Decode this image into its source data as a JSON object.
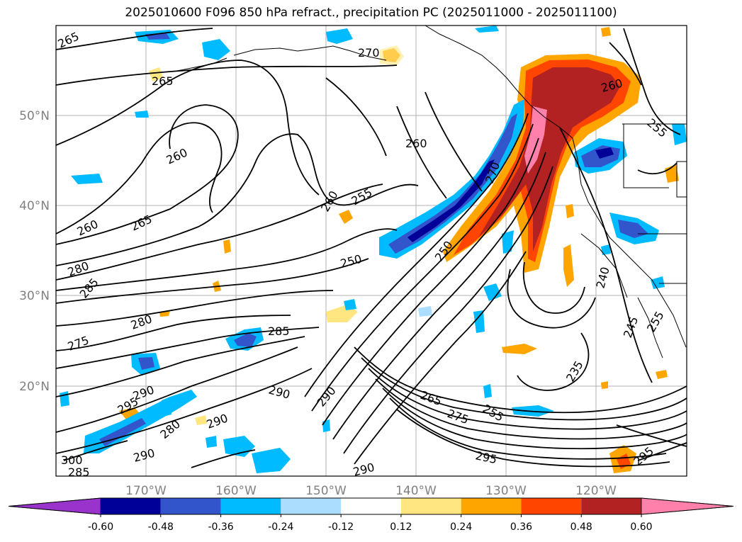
{
  "title": "2025010600 F096 850 hPa refract., precipitation PC (2025011000 - 2025011100)",
  "map": {
    "lon_range": [
      -180,
      -110
    ],
    "lat_range": [
      10,
      60
    ],
    "grid": true,
    "x_ticks": [
      "170°W",
      "160°W",
      "150°W",
      "140°W",
      "130°W",
      "120°W"
    ],
    "y_ticks": [
      "20°N",
      "30°N",
      "40°N",
      "50°N"
    ]
  },
  "contour_labels": [
    "265",
    "270",
    "265",
    "260",
    "260",
    "260",
    "255",
    "260",
    "255",
    "260",
    "265",
    "280",
    "285",
    "250",
    "250",
    "240",
    "270",
    "280",
    "275",
    "285",
    "245",
    "255",
    "235",
    "290",
    "290",
    "295",
    "290",
    "265",
    "275",
    "255",
    "290",
    "280",
    "300",
    "285",
    "290",
    "290",
    "295",
    "295"
  ],
  "colorbar": {
    "boundaries": [
      "-0.60",
      "-0.48",
      "-0.36",
      "-0.24",
      "-0.12",
      "0.12",
      "0.24",
      "0.36",
      "0.48",
      "0.60"
    ],
    "colors": [
      "#9933cc",
      "#000099",
      "#3355cc",
      "#00bbff",
      "#aaddff",
      "#ffffff",
      "#ffe680",
      "#ffa500",
      "#ff4500",
      "#b22222",
      "#ff80aa"
    ],
    "extend": "both"
  }
}
